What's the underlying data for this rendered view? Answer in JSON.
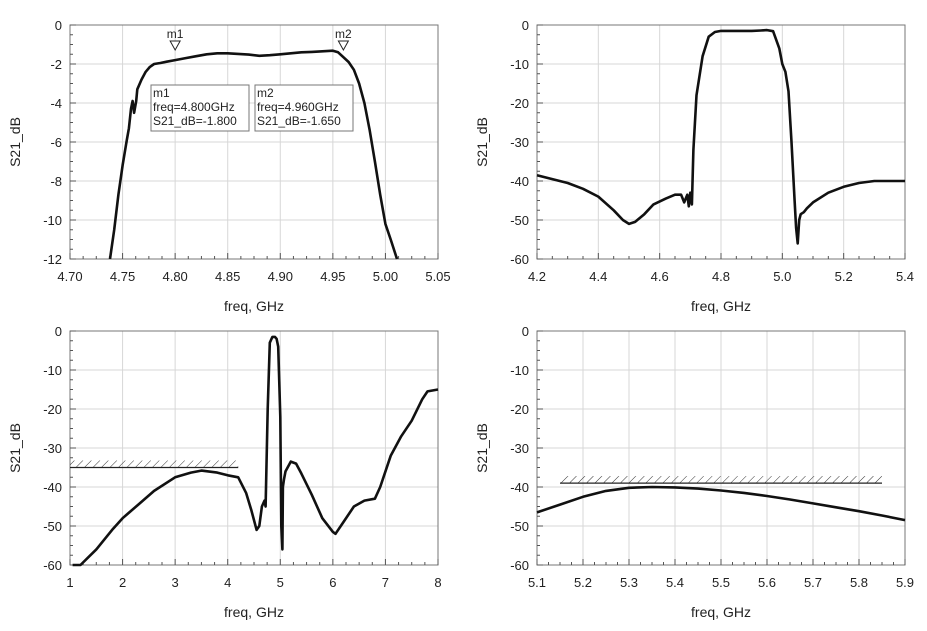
{
  "chart_data": [
    {
      "type": "line",
      "xlabel": "freq, GHz",
      "ylabel": "S21_dB",
      "xlim": [
        4.7,
        5.05
      ],
      "ylim": [
        -12,
        0
      ],
      "xticks": [
        "4.70",
        "4.75",
        "4.80",
        "4.85",
        "4.90",
        "4.95",
        "5.00",
        "5.05"
      ],
      "yticks": [
        "0",
        "-2",
        "-4",
        "-6",
        "-8",
        "-10",
        "-12"
      ],
      "grid": true,
      "series": [
        {
          "x": [
            4.738,
            4.742,
            4.746,
            4.75,
            4.754,
            4.756,
            4.758,
            4.7595,
            4.761,
            4.763,
            4.764,
            4.768,
            4.772,
            4.776,
            4.78,
            4.786,
            4.792,
            4.8,
            4.81,
            4.82,
            4.83,
            4.84,
            4.85,
            4.86,
            4.87,
            4.88,
            4.89,
            4.9,
            4.91,
            4.92,
            4.93,
            4.94,
            4.95,
            4.955,
            4.96,
            4.965,
            4.97,
            4.975,
            4.98,
            4.985,
            4.99,
            4.995,
            5.0,
            5.005,
            5.011
          ],
          "values": [
            -12,
            -10.5,
            -8.7,
            -7.2,
            -5.9,
            -5.3,
            -4.3,
            -3.9,
            -4.5,
            -3.9,
            -3.3,
            -2.8,
            -2.4,
            -2.15,
            -2.0,
            -1.95,
            -1.88,
            -1.8,
            -1.7,
            -1.6,
            -1.5,
            -1.45,
            -1.45,
            -1.48,
            -1.52,
            -1.58,
            -1.55,
            -1.5,
            -1.45,
            -1.4,
            -1.38,
            -1.35,
            -1.32,
            -1.4,
            -1.65,
            -1.9,
            -2.3,
            -3.0,
            -4.0,
            -5.4,
            -7.0,
            -8.7,
            -10.2,
            -11.0,
            -12
          ]
        }
      ],
      "markers": [
        {
          "label": "m1",
          "x": 4.8,
          "y": -1.8,
          "freq_text": "freq=4.800GHz",
          "val_text": "S21_dB=-1.800"
        },
        {
          "label": "m2",
          "x": 4.96,
          "y": -1.65,
          "freq_text": "freq=4.960GHz",
          "val_text": "S21_dB=-1.650"
        }
      ]
    },
    {
      "type": "line",
      "xlabel": "freq, GHz",
      "ylabel": "S21_dB",
      "xlim": [
        4.2,
        5.4
      ],
      "ylim": [
        -60,
        0
      ],
      "xticks": [
        "4.2",
        "4.4",
        "4.6",
        "4.8",
        "5.0",
        "5.2",
        "5.4"
      ],
      "yticks": [
        "0",
        "-10",
        "-20",
        "-30",
        "-40",
        "-50",
        "-60"
      ],
      "grid": true,
      "series": [
        {
          "x": [
            4.2,
            4.25,
            4.3,
            4.35,
            4.4,
            4.45,
            4.48,
            4.5,
            4.52,
            4.55,
            4.58,
            4.62,
            4.65,
            4.67,
            4.68,
            4.69,
            4.695,
            4.7,
            4.705,
            4.71,
            4.72,
            4.74,
            4.76,
            4.78,
            4.8,
            4.85,
            4.9,
            4.93,
            4.95,
            4.97,
            4.99,
            5.0,
            5.01,
            5.02,
            5.03,
            5.04,
            5.045,
            5.05,
            5.055,
            5.06,
            5.07,
            5.08,
            5.1,
            5.15,
            5.2,
            5.25,
            5.3,
            5.35,
            5.4
          ],
          "values": [
            -38.5,
            -39.5,
            -40.5,
            -42,
            -44,
            -47.5,
            -50,
            -51,
            -50.5,
            -48.5,
            -46,
            -44.5,
            -43.5,
            -43.5,
            -45.5,
            -43.5,
            -46.5,
            -43,
            -46,
            -32,
            -18,
            -8,
            -3,
            -1.8,
            -1.5,
            -1.5,
            -1.5,
            -1.4,
            -1.3,
            -1.6,
            -6,
            -10,
            -12,
            -17,
            -30,
            -45,
            -52,
            -56,
            -50,
            -48.5,
            -48,
            -47,
            -45.5,
            -43,
            -41.5,
            -40.5,
            -40,
            -40,
            -40
          ]
        }
      ]
    },
    {
      "type": "line",
      "xlabel": "freq, GHz",
      "ylabel": "S21_dB",
      "xlim": [
        1,
        8
      ],
      "ylim": [
        -60,
        0
      ],
      "xticks": [
        "1",
        "2",
        "3",
        "4",
        "5",
        "6",
        "7",
        "8"
      ],
      "yticks": [
        "0",
        "-10",
        "-20",
        "-30",
        "-40",
        "-50",
        "-60"
      ],
      "grid": true,
      "series": [
        {
          "x": [
            1.05,
            1.2,
            1.35,
            1.5,
            1.8,
            2.0,
            2.3,
            2.6,
            3.0,
            3.3,
            3.5,
            3.8,
            4.0,
            4.2,
            4.35,
            4.45,
            4.55,
            4.6,
            4.65,
            4.7,
            4.72,
            4.76,
            4.8,
            4.85,
            4.9,
            4.93,
            4.96,
            5.0,
            5.02,
            5.04,
            5.05,
            5.07,
            5.1,
            5.2,
            5.3,
            5.4,
            5.6,
            5.8,
            6.0,
            6.05,
            6.2,
            6.4,
            6.6,
            6.8,
            6.9,
            7.1,
            7.3,
            7.5,
            7.7,
            7.8,
            8.0
          ],
          "values": [
            -60,
            -60,
            -58,
            -56,
            -51,
            -48,
            -44.5,
            -41,
            -37.5,
            -36.3,
            -35.8,
            -36.3,
            -37,
            -37.5,
            -41.5,
            -46,
            -51,
            -50,
            -45,
            -43.5,
            -45,
            -20,
            -3,
            -1.5,
            -1.5,
            -2,
            -4,
            -22,
            -50,
            -56,
            -40,
            -38,
            -36,
            -33.5,
            -34,
            -36.5,
            -42,
            -48,
            -51.5,
            -52,
            -49,
            -45,
            -43.5,
            -43,
            -40,
            -32,
            -27,
            -23,
            -17.5,
            -15.5,
            -15
          ]
        }
      ],
      "limit_line": {
        "x": [
          1.0,
          4.2
        ],
        "y": -35
      }
    },
    {
      "type": "line",
      "xlabel": "freq, GHz",
      "ylabel": "S21_dB",
      "xlim": [
        5.1,
        5.9
      ],
      "ylim": [
        -60,
        0
      ],
      "xticks": [
        "5.1",
        "5.2",
        "5.3",
        "5.4",
        "5.5",
        "5.6",
        "5.7",
        "5.8",
        "5.9"
      ],
      "yticks": [
        "0",
        "-10",
        "-20",
        "-30",
        "-40",
        "-50",
        "-60"
      ],
      "grid": true,
      "series": [
        {
          "x": [
            5.1,
            5.15,
            5.2,
            5.25,
            5.3,
            5.35,
            5.4,
            5.45,
            5.5,
            5.55,
            5.6,
            5.65,
            5.7,
            5.75,
            5.8,
            5.85,
            5.9
          ],
          "values": [
            -46.5,
            -44.5,
            -42.5,
            -41,
            -40.2,
            -40,
            -40.1,
            -40.4,
            -40.9,
            -41.5,
            -42.3,
            -43.2,
            -44.2,
            -45.2,
            -46.2,
            -47.3,
            -48.5
          ]
        }
      ],
      "limit_line": {
        "x": [
          5.15,
          5.85
        ],
        "y": -39
      }
    }
  ]
}
